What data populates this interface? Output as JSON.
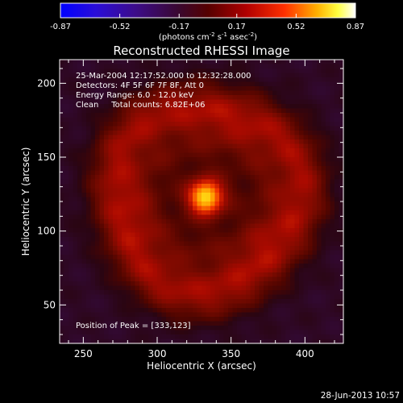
{
  "chart_data": {
    "type": "heatmap",
    "title": "Reconstructed RHESSI Image",
    "xlabel": "Heliocentric X (arcsec)",
    "ylabel": "Heliocentric Y (arcsec)",
    "xlim": [
      234,
      426
    ],
    "ylim": [
      24,
      216
    ],
    "xticks": [
      250,
      300,
      350,
      400
    ],
    "yticks": [
      50,
      100,
      150,
      200
    ],
    "colorbar": {
      "label_prefix": "(photons cm",
      "label_exp1": "-2",
      "label_mid1": " s",
      "label_exp2": "-1",
      "label_mid2": " asec",
      "label_exp3": "-2",
      "label_suffix": ")",
      "ticks": [
        "-0.87",
        "-0.52",
        "-0.17",
        "0.17",
        "0.52",
        "0.87"
      ],
      "range": [
        -0.87,
        0.87
      ],
      "colormap": "RHESSI red-temperature (blue → purple → red → orange → yellow → white)"
    },
    "annotations": [
      "25-Mar-2004 12:17:52.000 to 12:32:28.000",
      "Detectors: 4F 5F 6F 7F 8F, Att 0",
      "Energy Range: 6.0 - 12.0 keV",
      "Clean     Total counts: 6.82E+06"
    ],
    "peak_label": "Position of Peak = [333,123]",
    "peak": {
      "x": 333,
      "y": 123,
      "value": 0.87
    },
    "background_level": -0.12,
    "rings": [
      {
        "radius_arcsec": 63,
        "level": 0.2
      },
      {
        "radius_arcsec": 40,
        "level": 0.16
      }
    ]
  },
  "timestamp": "28-Jun-2013 10:57",
  "colors": {
    "background": "#000000",
    "foreground": "#ffffff"
  }
}
